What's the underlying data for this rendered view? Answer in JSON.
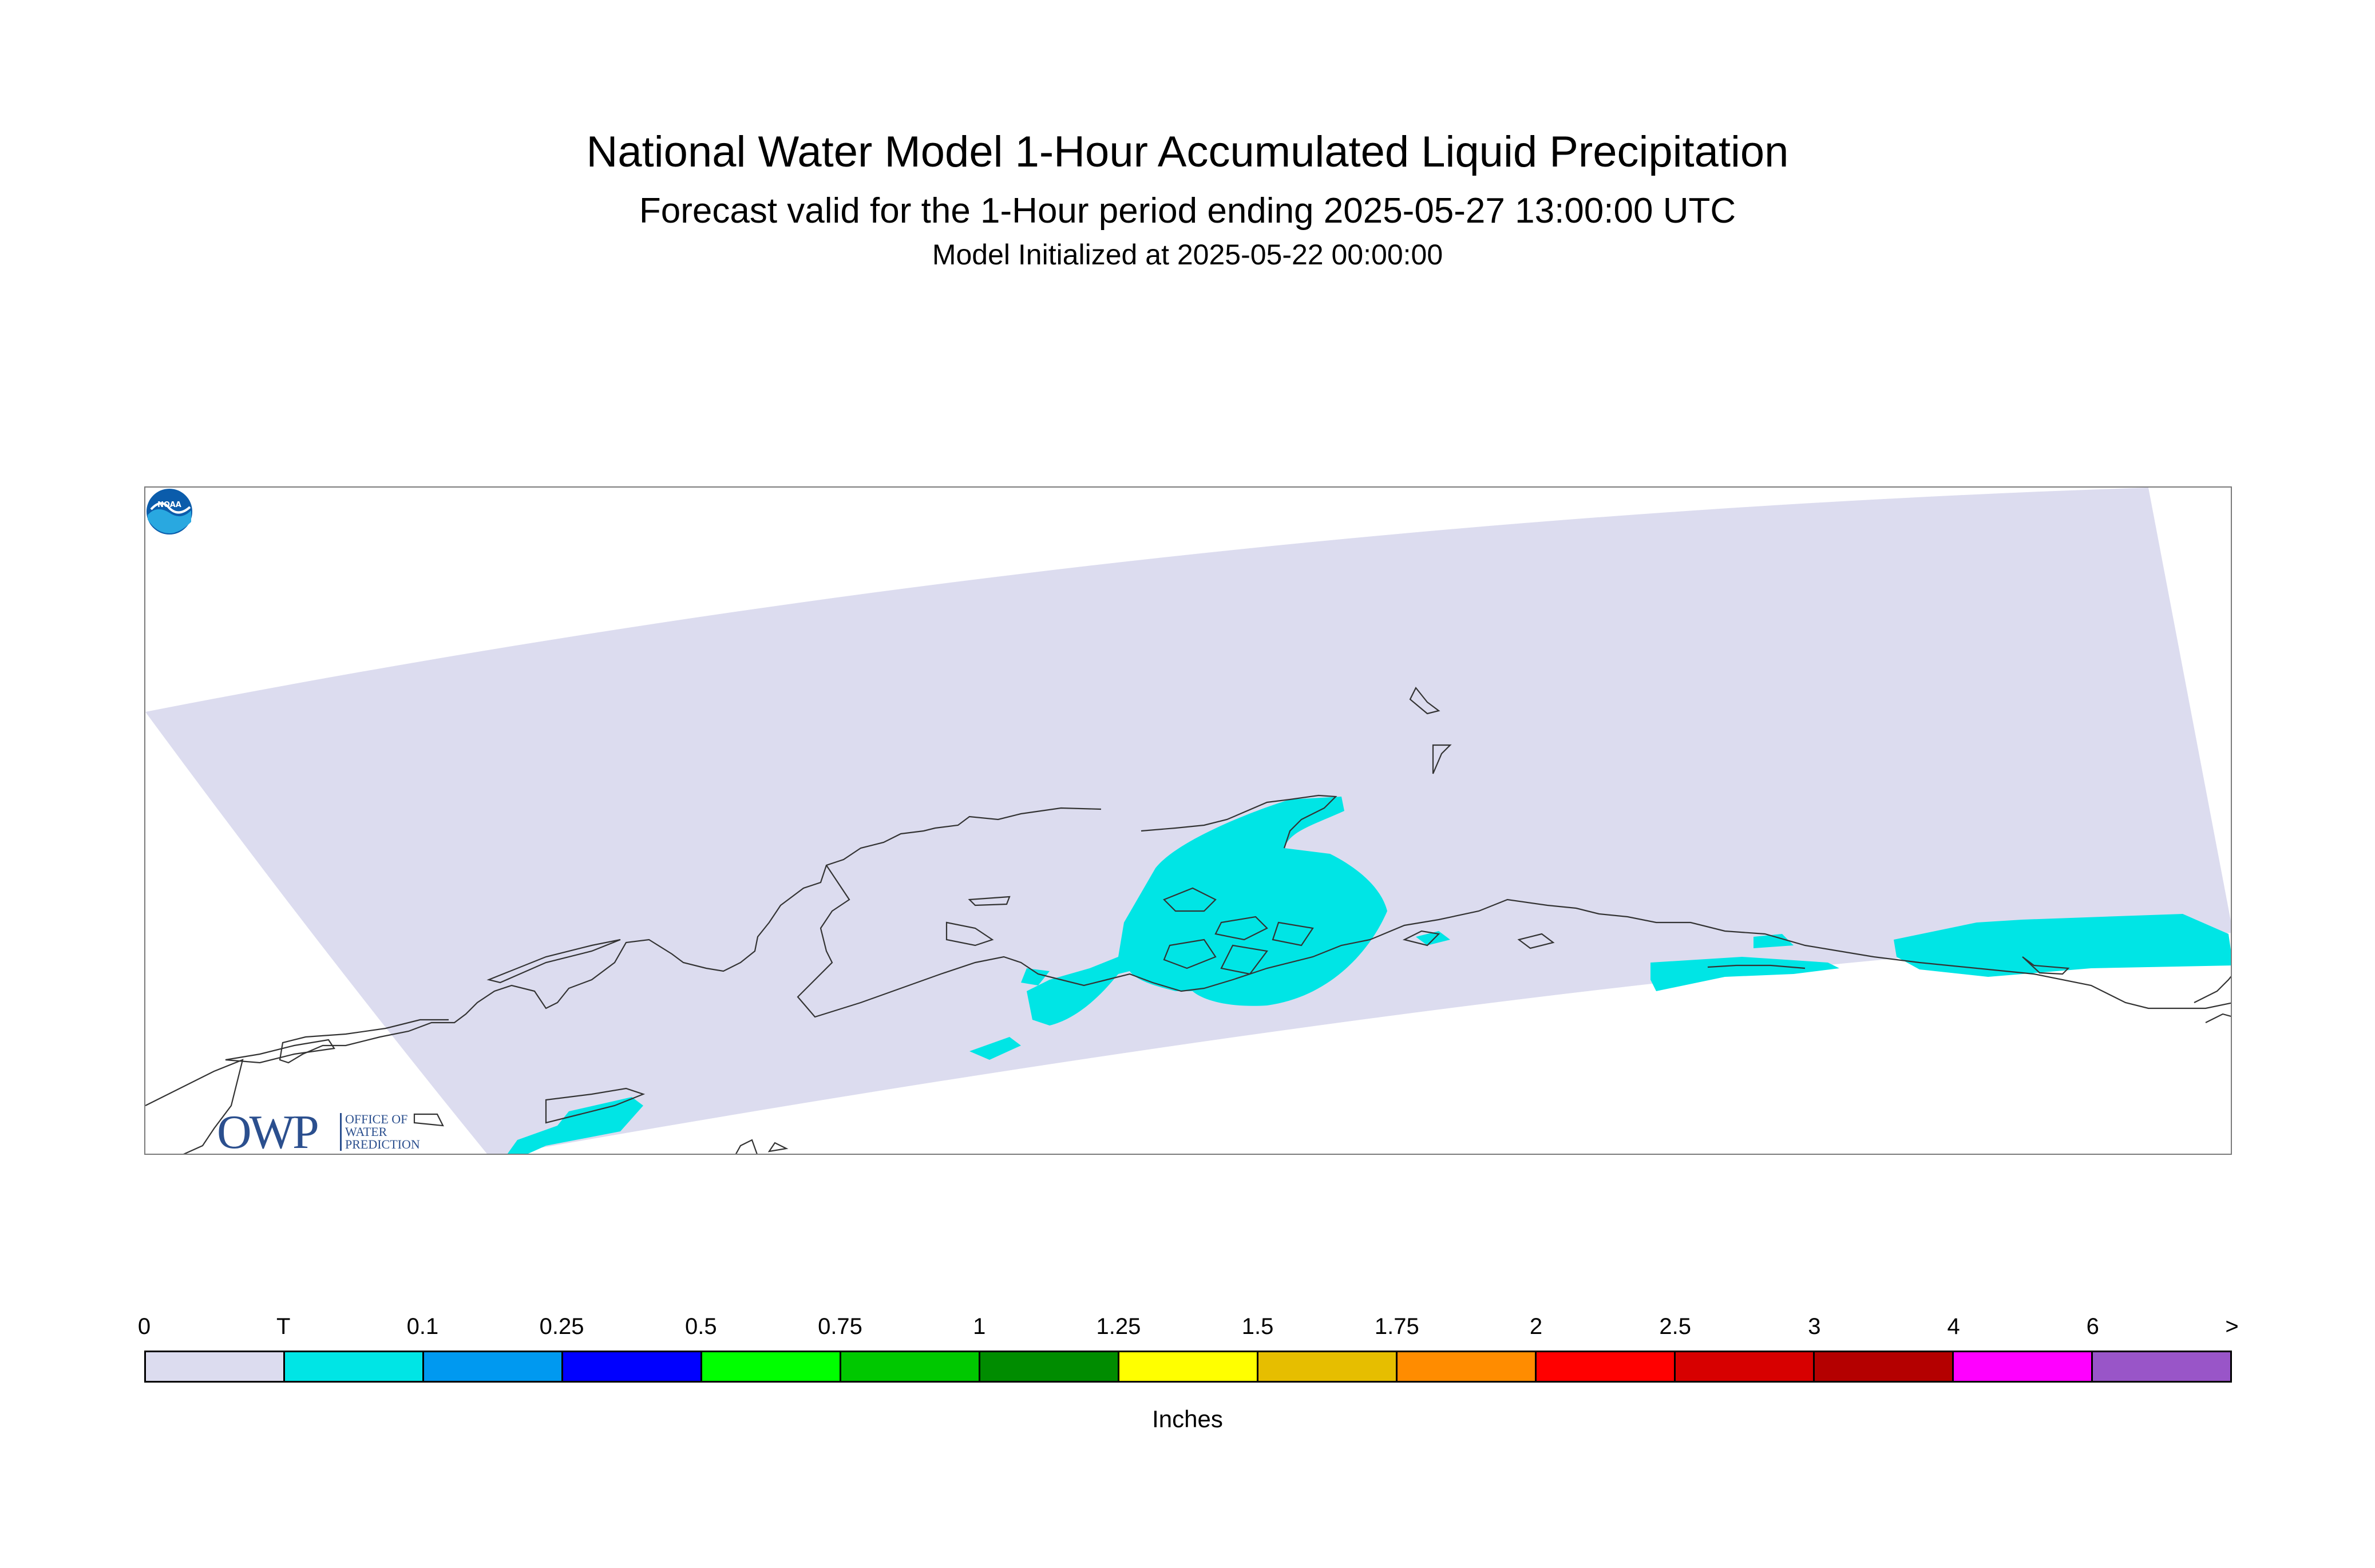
{
  "header": {
    "title": "National Water Model 1-Hour Accumulated Liquid Precipitation",
    "subtitle": "Forecast valid for the 1-Hour period ending 2025-05-27 13:00:00 UTC",
    "init": "Model Initialized at 2025-05-22 00:00:00"
  },
  "map": {
    "domain_color": "#dcdcef",
    "precip_color": "#00e5e5",
    "coast_color": "#333333"
  },
  "logos": {
    "owp": {
      "mark": "OWP",
      "line1": "OFFICE OF",
      "line2": "WATER",
      "line3": "PREDICTION",
      "color": "#2b4f8e"
    },
    "noaa": {
      "mark": "NOAA",
      "color": "#0b5cab"
    }
  },
  "legend": {
    "unit": "Inches",
    "ticks": [
      "0",
      "T",
      "0.1",
      "0.25",
      "0.5",
      "0.75",
      "1",
      "1.25",
      "1.5",
      "1.75",
      "2",
      "2.5",
      "3",
      "4",
      "6",
      ">"
    ],
    "colors": [
      "#dcdcef",
      "#00e5e5",
      "#0099f0",
      "#0000ff",
      "#00ff00",
      "#00c800",
      "#008c00",
      "#ffff00",
      "#e6be00",
      "#ff8c00",
      "#ff0000",
      "#d70000",
      "#b40000",
      "#ff00ff",
      "#9955c8"
    ]
  }
}
